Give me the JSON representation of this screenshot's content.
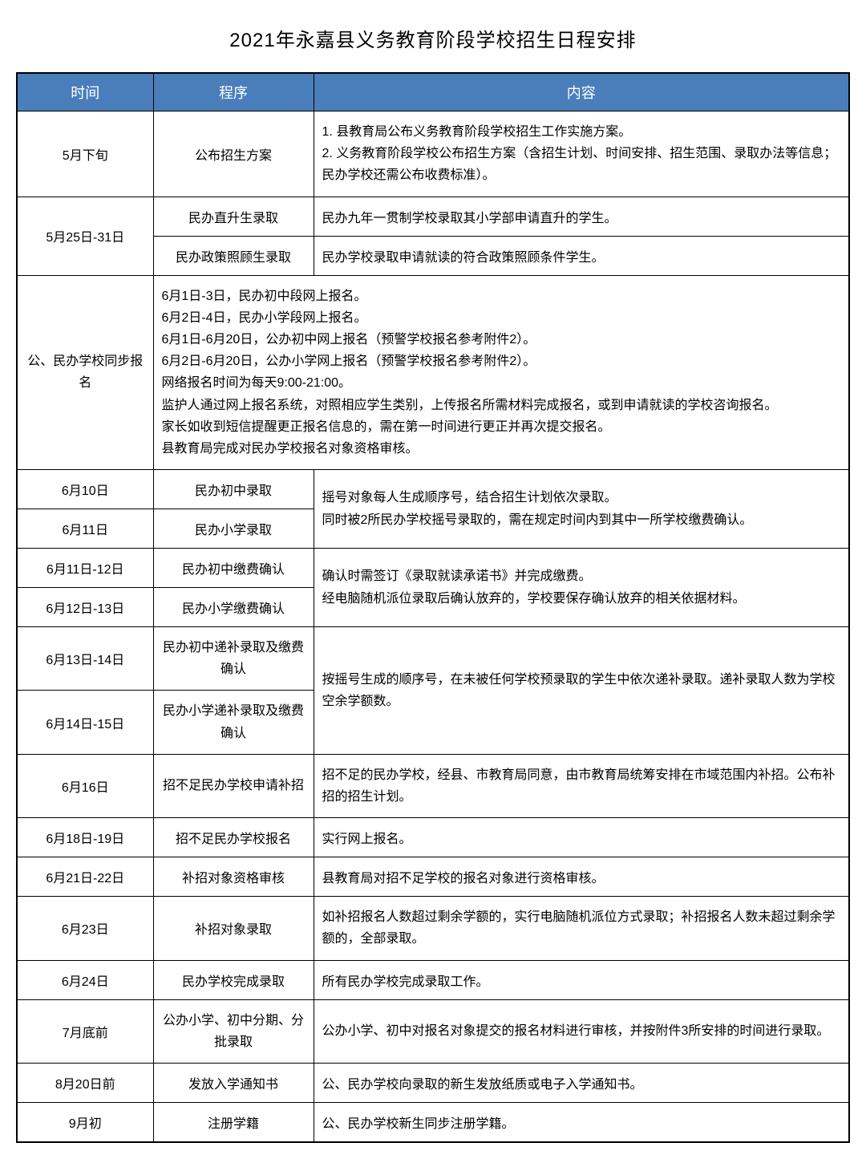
{
  "title": "2021年永嘉县义务教育阶段学校招生日程安排",
  "header_bg": "#4a7ebb",
  "header_color": "#ffffff",
  "border_color": "#000000",
  "columns": {
    "time": "时间",
    "procedure": "程序",
    "content": "内容"
  },
  "rows": {
    "r1": {
      "time": "5月下旬",
      "proc": "公布招生方案",
      "content": "1. 县教育局公布义务教育阶段学校招生工作实施方案。\n2. 义务教育阶段学校公布招生方案（含招生计划、时间安排、招生范围、录取办法等信息；民办学校还需公布收费标准）。"
    },
    "r2a": {
      "time": "5月25日-31日",
      "proc": "民办直升生录取",
      "content": "民办九年一贯制学校录取其小学部申请直升的学生。"
    },
    "r2b": {
      "proc": "民办政策照顾生录取",
      "content": "民办学校录取申请就读的符合政策照顾条件学生。"
    },
    "r3": {
      "time": "公、民办学校同步报名",
      "content": "6月1日-3日，民办初中段网上报名。\n6月2日-4日，民办小学段网上报名。\n6月1日-6月20日，公办初中网上报名（预警学校报名参考附件2）。\n6月2日-6月20日，公办小学网上报名（预警学校报名参考附件2）。\n网络报名时间为每天9:00-21:00。\n监护人通过网上报名系统，对照相应学生类别，上传报名所需材料完成报名，或到申请就读的学校咨询报名。\n家长如收到短信提醒更正报名信息的，需在第一时间进行更正并再次提交报名。\n县教育局完成对民办学校报名对象资格审核。"
    },
    "r4a": {
      "time": "6月10日",
      "proc": "民办初中录取",
      "content": "摇号对象每人生成顺序号，结合招生计划依次录取。\n同时被2所民办学校摇号录取的，需在规定时间内到其中一所学校缴费确认。"
    },
    "r4b": {
      "time": "6月11日",
      "proc": "民办小学录取"
    },
    "r5a": {
      "time": "6月11日-12日",
      "proc": "民办初中缴费确认",
      "content": "确认时需签订《录取就读承诺书》并完成缴费。\n经电脑随机派位录取后确认放弃的，学校要保存确认放弃的相关依据材料。"
    },
    "r5b": {
      "time": "6月12日-13日",
      "proc": "民办小学缴费确认"
    },
    "r6a": {
      "time": "6月13日-14日",
      "proc": "民办初中递补录取及缴费确认",
      "content": "按摇号生成的顺序号，在未被任何学校预录取的学生中依次递补录取。递补录取人数为学校空余学额数。"
    },
    "r6b": {
      "time": "6月14日-15日",
      "proc": "民办小学递补录取及缴费确认"
    },
    "r7": {
      "time": "6月16日",
      "proc": "招不足民办学校申请补招",
      "content": "招不足的民办学校，经县、市教育局同意，由市教育局统筹安排在市域范围内补招。公布补招的招生计划。"
    },
    "r8": {
      "time": "6月18日-19日",
      "proc": "招不足民办学校报名",
      "content": "实行网上报名。"
    },
    "r9": {
      "time": "6月21日-22日",
      "proc": "补招对象资格审核",
      "content": "县教育局对招不足学校的报名对象进行资格审核。"
    },
    "r10": {
      "time": "6月23日",
      "proc": "补招对象录取",
      "content": "如补招报名人数超过剩余学额的，实行电脑随机派位方式录取；补招报名人数未超过剩余学额的，全部录取。"
    },
    "r11": {
      "time": "6月24日",
      "proc": "民办学校完成录取",
      "content": "所有民办学校完成录取工作。"
    },
    "r12": {
      "time": "7月底前",
      "proc": "公办小学、初中分期、分批录取",
      "content": "公办小学、初中对报名对象提交的报名材料进行审核，并按附件3所安排的时间进行录取。"
    },
    "r13": {
      "time": "8月20日前",
      "proc": "发放入学通知书",
      "content": "公、民办学校向录取的新生发放纸质或电子入学通知书。"
    },
    "r14": {
      "time": "9月初",
      "proc": "注册学籍",
      "content": "公、民办学校新生同步注册学籍。"
    }
  }
}
